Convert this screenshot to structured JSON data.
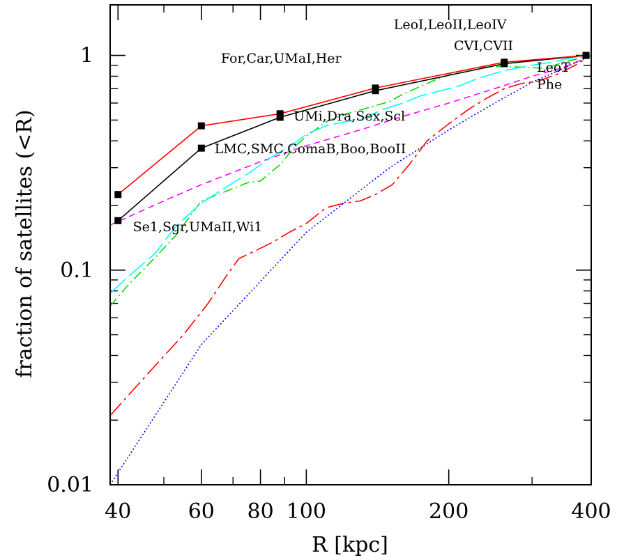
{
  "chart_data": {
    "type": "line",
    "xlabel": "R [kpc]",
    "ylabel": "fraction of satellites (<R)",
    "xscale": "log",
    "yscale": "log",
    "xlim": [
      38.5,
      400
    ],
    "ylim": [
      0.01,
      1.72
    ],
    "x_ticks": [
      {
        "value": 40,
        "label": "40"
      },
      {
        "value": 60,
        "label": "60"
      },
      {
        "value": 80,
        "label": "80"
      },
      {
        "value": 100,
        "label": "100"
      },
      {
        "value": 200,
        "label": "200"
      },
      {
        "value": 400,
        "label": "400"
      }
    ],
    "x_minor_ticks": [
      50,
      70,
      90,
      300
    ],
    "y_ticks": [
      {
        "value": 0.01,
        "label": "0.01"
      },
      {
        "value": 0.1,
        "label": "0.1"
      },
      {
        "value": 1,
        "label": "1"
      }
    ],
    "y_minor_ticks": [
      0.02,
      0.03,
      0.04,
      0.05,
      0.06,
      0.07,
      0.08,
      0.09,
      0.2,
      0.3,
      0.4,
      0.5,
      0.6,
      0.7,
      0.8,
      0.9
    ],
    "series": [
      {
        "color": "#ff0000",
        "style": "solid",
        "markers": true,
        "x": [
          40,
          60,
          88,
          140,
          262,
          390
        ],
        "y": [
          0.225,
          0.47,
          0.535,
          0.705,
          0.93,
          1.0
        ]
      },
      {
        "color": "#000000",
        "style": "solid",
        "markers": true,
        "x": [
          40,
          60,
          88,
          140,
          262,
          390
        ],
        "y": [
          0.17,
          0.37,
          0.515,
          0.685,
          0.915,
          1.0
        ]
      },
      {
        "color": "#00ffff",
        "style": "longdash",
        "x": [
          38.5,
          42,
          48,
          53,
          57,
          60,
          66,
          71,
          76,
          80,
          86,
          93,
          100,
          110,
          120,
          130,
          145,
          160,
          175,
          190,
          210,
          230,
          262,
          300,
          330,
          360,
          400
        ],
        "y": [
          0.078,
          0.093,
          0.12,
          0.16,
          0.185,
          0.205,
          0.235,
          0.26,
          0.285,
          0.31,
          0.345,
          0.38,
          0.43,
          0.47,
          0.49,
          0.5,
          0.56,
          0.6,
          0.65,
          0.68,
          0.72,
          0.78,
          0.85,
          0.9,
          0.93,
          0.97,
          1.0
        ]
      },
      {
        "color": "#00dd00",
        "style": "dotdash",
        "x": [
          38.5,
          42,
          48,
          53,
          57,
          60,
          65,
          70,
          75,
          80,
          88,
          95,
          100,
          110,
          120,
          135,
          150,
          160,
          175,
          190,
          210,
          230,
          262,
          290,
          320,
          350,
          400
        ],
        "y": [
          0.068,
          0.085,
          0.115,
          0.145,
          0.18,
          0.21,
          0.225,
          0.24,
          0.255,
          0.26,
          0.31,
          0.38,
          0.42,
          0.49,
          0.53,
          0.57,
          0.61,
          0.66,
          0.72,
          0.78,
          0.84,
          0.88,
          0.89,
          0.88,
          0.87,
          0.93,
          1.0
        ]
      },
      {
        "color": "#ff00ff",
        "style": "shortdash",
        "x": [
          38.5,
          50,
          60,
          80,
          100,
          130,
          160,
          200,
          250,
          300,
          350,
          400
        ],
        "y": [
          0.162,
          0.21,
          0.25,
          0.32,
          0.38,
          0.45,
          0.52,
          0.6,
          0.7,
          0.8,
          0.88,
          1.0
        ]
      },
      {
        "color": "#ff0000",
        "style": "dashdot",
        "x": [
          38.5,
          42,
          48,
          55,
          62,
          68,
          72,
          78,
          85,
          92,
          100,
          110,
          120,
          130,
          140,
          152,
          165,
          180,
          200,
          220,
          240,
          262,
          285,
          310,
          340,
          370,
          400
        ],
        "y": [
          0.021,
          0.026,
          0.036,
          0.05,
          0.07,
          0.095,
          0.113,
          0.123,
          0.135,
          0.15,
          0.165,
          0.195,
          0.205,
          0.21,
          0.225,
          0.25,
          0.31,
          0.4,
          0.48,
          0.56,
          0.63,
          0.7,
          0.74,
          0.76,
          0.82,
          0.9,
          1.0
        ]
      },
      {
        "color": "#0000ff",
        "style": "dotted",
        "x": [
          38.5,
          60,
          100,
          150,
          200,
          250,
          300,
          350,
          400
        ],
        "y": [
          0.01,
          0.045,
          0.15,
          0.3,
          0.45,
          0.6,
          0.75,
          0.87,
          1.0
        ]
      }
    ],
    "annotations": [
      {
        "text": "LeoI,LeoII,LeoIV",
        "x": 153,
        "y": 1.33,
        "anchor": "start"
      },
      {
        "text": "CVI,CVII",
        "x": 205,
        "y": 1.06,
        "anchor": "start"
      },
      {
        "text": "For,Car,UMaI,Her",
        "x": 66,
        "y": 0.925,
        "anchor": "start"
      },
      {
        "text": "LeoT",
        "x": 307,
        "y": 0.84,
        "anchor": "start"
      },
      {
        "text": "Phe",
        "x": 307,
        "y": 0.7,
        "anchor": "start"
      },
      {
        "text": "UMi,Dra,Sex,Scl",
        "x": 94,
        "y": 0.497,
        "anchor": "start"
      },
      {
        "text": "LMC,SMC,ComaB,Boo,BooII",
        "x": 64,
        "y": 0.35,
        "anchor": "start"
      },
      {
        "text": "Se1,Sgr,UMaII,Wi1",
        "x": 43,
        "y": 0.152,
        "anchor": "start"
      }
    ]
  }
}
